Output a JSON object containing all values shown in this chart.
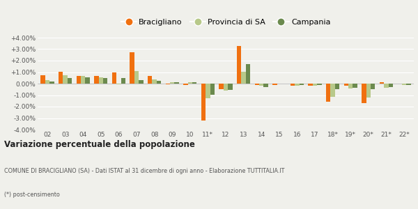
{
  "categories": [
    "02",
    "03",
    "04",
    "05",
    "06",
    "07",
    "08",
    "09",
    "10",
    "11*",
    "12",
    "13",
    "14",
    "15",
    "16",
    "17",
    "18*",
    "19*",
    "20*",
    "21*",
    "22*"
  ],
  "bracigliano": [
    0.75,
    1.05,
    0.65,
    0.65,
    1.0,
    2.75,
    0.65,
    -0.05,
    -0.1,
    -3.2,
    -0.5,
    3.3,
    -0.15,
    -0.1,
    -0.2,
    -0.2,
    -1.6,
    -0.2,
    -1.7,
    0.15,
    0.0
  ],
  "provincia": [
    0.3,
    0.7,
    0.65,
    0.55,
    -0.05,
    1.1,
    0.35,
    0.15,
    0.15,
    -1.25,
    -0.6,
    1.05,
    -0.2,
    0.0,
    -0.2,
    -0.2,
    -1.15,
    -0.45,
    -1.2,
    -0.35,
    -0.15
  ],
  "campania": [
    0.2,
    0.5,
    0.55,
    0.5,
    0.5,
    0.3,
    0.25,
    0.1,
    0.1,
    -0.95,
    -0.55,
    1.7,
    -0.3,
    0.0,
    -0.15,
    -0.15,
    -0.5,
    -0.35,
    -0.5,
    -0.3,
    -0.15
  ],
  "color_bracigliano": "#f07010",
  "color_provincia": "#b8c98a",
  "color_campania": "#6b8a4e",
  "title": "Variazione percentuale della popolazione",
  "subtitle": "COMUNE DI BRACIGLIANO (SA) - Dati ISTAT al 31 dicembre di ogni anno - Elaborazione TUTTITALIA.IT",
  "footnote": "(*) post-censimento",
  "legend_labels": [
    "Bracigliano",
    "Provincia di SA",
    "Campania"
  ],
  "ylim": [
    -4.0,
    4.0
  ],
  "yticks": [
    -4.0,
    -3.0,
    -2.0,
    -1.0,
    0.0,
    1.0,
    2.0,
    3.0,
    4.0
  ],
  "background_color": "#f0f0eb",
  "grid_color": "#ffffff"
}
